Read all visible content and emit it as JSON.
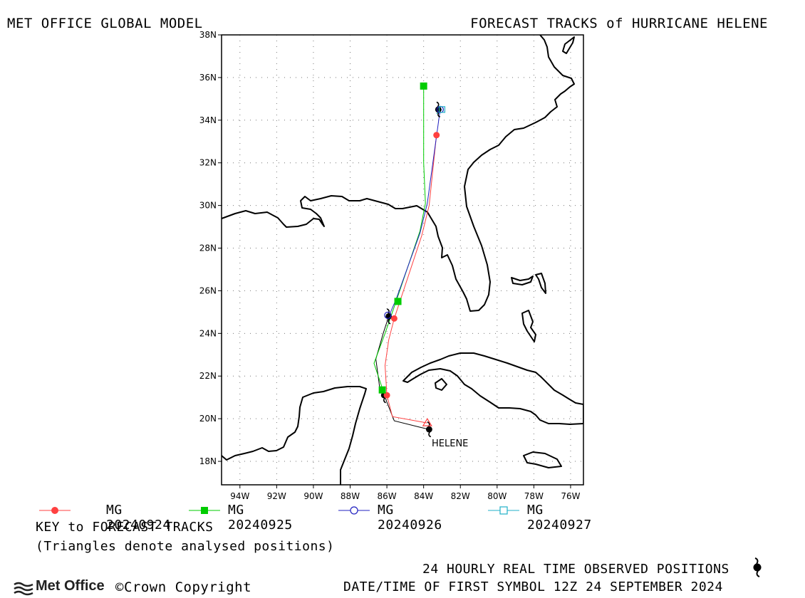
{
  "header": {
    "left_title": "MET OFFICE GLOBAL MODEL",
    "right_title": "FORECAST TRACKS of HURRICANE HELENE"
  },
  "map": {
    "lat_ticks": [
      "38N",
      "36N",
      "34N",
      "32N",
      "30N",
      "28N",
      "26N",
      "24N",
      "22N",
      "20N",
      "18N"
    ],
    "lon_ticks": [
      "94W",
      "92W",
      "90W",
      "88W",
      "86W",
      "84W",
      "82W",
      "80W",
      "78W",
      "76W"
    ],
    "storm_label": "HELENE",
    "lon_range": [
      -95,
      -75.3
    ],
    "lat_range": [
      16.9,
      38
    ]
  },
  "legend": {
    "items": [
      {
        "label": "MG 20240924",
        "color": "#ff4040",
        "marker": "filled-circle"
      },
      {
        "label": "MG 20240925",
        "color": "#00cc00",
        "marker": "filled-square"
      },
      {
        "label": "MG 20240926",
        "color": "#2020c0",
        "marker": "open-circle"
      },
      {
        "label": "MG 20240927",
        "color": "#20b0c8",
        "marker": "open-square"
      }
    ],
    "key_title": "KEY to FORECAST TRACKS",
    "key_note": "(Triangles denote analysed positions)"
  },
  "footer": {
    "logo_text": "Met Office",
    "copyright": "©Crown Copyright",
    "observed_note": "24 HOURLY REAL TIME OBSERVED POSITIONS",
    "datetime_note": "DATE/TIME OF FIRST SYMBOL 12Z 24 SEPTEMBER 2024"
  },
  "tracks": {
    "observed": {
      "color": "#000000",
      "points": [
        [
          -83.7,
          19.5
        ],
        [
          -84.2,
          19.6
        ],
        [
          -85.6,
          19.9
        ],
        [
          -86.1,
          21.0
        ],
        [
          -86.4,
          21.5
        ],
        [
          -86.6,
          22.8
        ],
        [
          -86.2,
          24.0
        ],
        [
          -85.9,
          24.8
        ]
      ]
    },
    "mg20240924": {
      "color": "#ff4040",
      "points": [
        [
          -83.8,
          19.8
        ],
        [
          -85.7,
          20.1
        ],
        [
          -86.0,
          21.1
        ],
        [
          -86.1,
          22.5
        ],
        [
          -85.9,
          23.7
        ],
        [
          -85.6,
          24.7
        ],
        [
          -84.1,
          28.6
        ],
        [
          -83.7,
          30.0
        ],
        [
          -83.3,
          33.3
        ]
      ]
    },
    "mg20240925": {
      "color": "#00cc00",
      "points": [
        [
          -86.2,
          21.3
        ],
        [
          -86.7,
          22.6
        ],
        [
          -86.1,
          24.0
        ],
        [
          -85.5,
          25.5
        ],
        [
          -84.2,
          28.8
        ],
        [
          -83.9,
          30.1
        ],
        [
          -84.0,
          32.0
        ],
        [
          -84.0,
          35.6
        ]
      ]
    },
    "mg20240926": {
      "color": "#2020c0",
      "points": [
        [
          -85.9,
          24.8
        ],
        [
          -85.5,
          25.6
        ],
        [
          -84.2,
          28.7
        ],
        [
          -83.8,
          30.1
        ],
        [
          -83.1,
          34.5
        ]
      ]
    },
    "mg20240927": {
      "color": "#20b0c8",
      "points": [
        [
          -83.0,
          34.5
        ],
        [
          -83.3,
          34.3
        ]
      ]
    },
    "markers": [
      {
        "series": "mg20240924",
        "lon": -86.0,
        "lat": 21.1,
        "type": "filled-circle"
      },
      {
        "series": "mg20240924",
        "lon": -85.6,
        "lat": 24.7,
        "type": "filled-circle"
      },
      {
        "series": "mg20240924",
        "lon": -83.3,
        "lat": 33.3,
        "type": "filled-circle"
      },
      {
        "series": "mg20240924",
        "lon": -83.8,
        "lat": 19.8,
        "type": "open-triangle"
      },
      {
        "series": "mg20240925",
        "lon": -86.25,
        "lat": 21.35,
        "type": "filled-square"
      },
      {
        "series": "mg20240925",
        "lon": -85.4,
        "lat": 25.5,
        "type": "filled-square"
      },
      {
        "series": "mg20240925",
        "lon": -84.0,
        "lat": 35.6,
        "type": "filled-square"
      },
      {
        "series": "mg20240926",
        "lon": -85.95,
        "lat": 24.85,
        "type": "open-circle"
      },
      {
        "series": "mg20240926",
        "lon": -83.1,
        "lat": 34.5,
        "type": "open-circle"
      },
      {
        "series": "mg20240927",
        "lon": -83.0,
        "lat": 34.5,
        "type": "open-square"
      }
    ],
    "observed_symbols": [
      {
        "lon": -83.7,
        "lat": 19.5
      },
      {
        "lon": -86.15,
        "lat": 21.1
      },
      {
        "lon": -85.9,
        "lat": 24.8
      },
      {
        "lon": -83.2,
        "lat": 34.5
      }
    ]
  }
}
